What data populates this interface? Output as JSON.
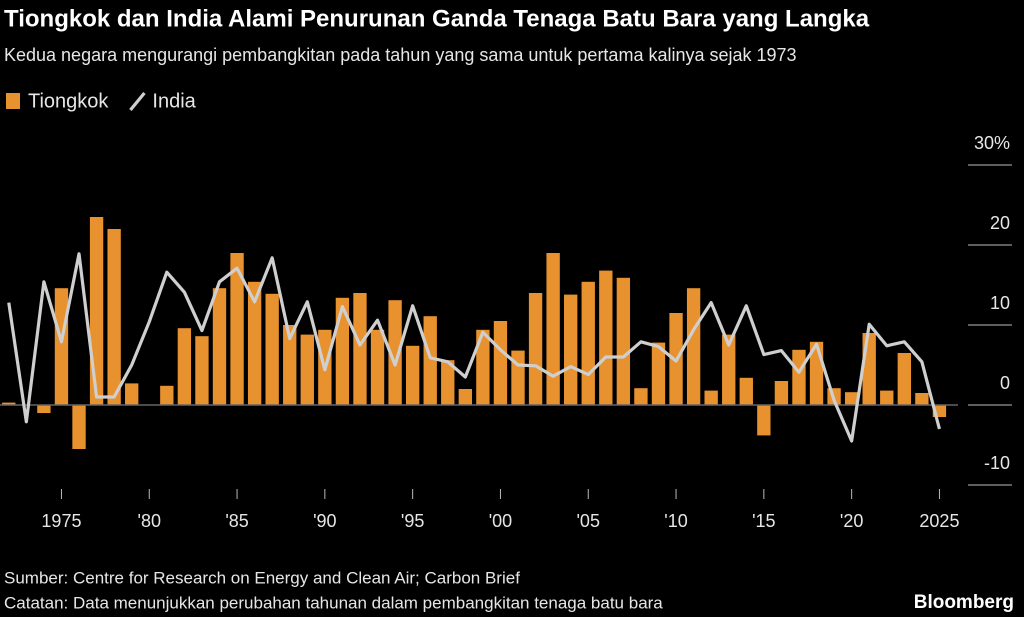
{
  "chart_data": {
    "type": "bar-line",
    "title": "Tiongkok dan India Alami Penurunan Ganda Tenaga Batu Bara yang Langka",
    "subtitle": "Kedua negara mengurangi pembangkitan pada tahun yang sama untuk pertama kalinya sejak 1973",
    "x": [
      1972,
      1973,
      1974,
      1975,
      1976,
      1977,
      1978,
      1979,
      1980,
      1981,
      1982,
      1983,
      1984,
      1985,
      1986,
      1987,
      1988,
      1989,
      1990,
      1991,
      1992,
      1993,
      1994,
      1995,
      1996,
      1997,
      1998,
      1999,
      2000,
      2001,
      2002,
      2003,
      2004,
      2005,
      2006,
      2007,
      2008,
      2009,
      2010,
      2011,
      2012,
      2013,
      2014,
      2015,
      2016,
      2017,
      2018,
      2019,
      2020,
      2021,
      2022,
      2023,
      2024,
      2025
    ],
    "series": [
      {
        "name": "Tiongkok",
        "type": "bar",
        "color": "#e8922f",
        "values": [
          0.3,
          0,
          -1,
          14.6,
          -5.5,
          23.5,
          22,
          2.7,
          0,
          2.4,
          9.6,
          8.6,
          14.6,
          19,
          15.4,
          13.9,
          10,
          8.8,
          9.4,
          13.4,
          14,
          9.4,
          13.1,
          7.4,
          11.1,
          5.6,
          2,
          9.4,
          10.5,
          6.8,
          14,
          19,
          13.8,
          15.4,
          16.8,
          15.9,
          2.1,
          7.8,
          11.5,
          14.6,
          1.8,
          8.8,
          3.4,
          -3.8,
          3,
          6.9,
          7.9,
          2.1,
          1.6,
          9,
          1.8,
          6.5,
          1.5,
          -1.5
        ]
      },
      {
        "name": "India",
        "type": "line",
        "color": "#cfcfcf",
        "values": [
          12.8,
          -2.1,
          15.4,
          7.9,
          18.9,
          1,
          1,
          5,
          10.4,
          16.6,
          14.1,
          9.3,
          15.4,
          17.1,
          12.9,
          18.4,
          8.3,
          12.9,
          4.4,
          12.3,
          7.5,
          10.6,
          5,
          12.4,
          5.9,
          5.4,
          3.5,
          9.1,
          6.9,
          5,
          4.9,
          3.6,
          4.8,
          3.8,
          6,
          6,
          7.9,
          7.3,
          5.5,
          9.4,
          12.8,
          7.5,
          12.4,
          6.3,
          6.8,
          4.1,
          7.6,
          0.6,
          -4.5,
          10.1,
          7.4,
          7.9,
          5.4,
          -3
        ]
      }
    ],
    "xlim": [
      1971.5,
      2026
    ],
    "xticks": [
      {
        "value": 1975,
        "label": "1975"
      },
      {
        "value": 1980,
        "label": "'80"
      },
      {
        "value": 1985,
        "label": "'85"
      },
      {
        "value": 1990,
        "label": "'90"
      },
      {
        "value": 1995,
        "label": "'95"
      },
      {
        "value": 2000,
        "label": "'00"
      },
      {
        "value": 2005,
        "label": "'05"
      },
      {
        "value": 2010,
        "label": "'10"
      },
      {
        "value": 2015,
        "label": "'15"
      },
      {
        "value": 2020,
        "label": "'20"
      },
      {
        "value": 2025,
        "label": "2025"
      }
    ],
    "ylim": [
      -10,
      30
    ],
    "yticks": [
      -10,
      0,
      10,
      20,
      {
        "value": 30,
        "label": "30%"
      }
    ],
    "source": "Sumber: Centre for Research on Energy and Clean Air; Carbon Brief",
    "note": "Catatan: Data menunjukkan perubahan tahunan dalam pembangkitan tenaga batu bara",
    "brand": "Bloomberg"
  }
}
